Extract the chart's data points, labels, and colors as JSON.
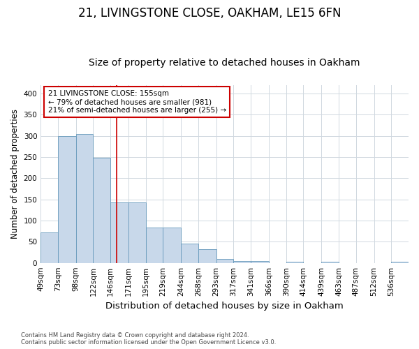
{
  "title1": "21, LIVINGSTONE CLOSE, OAKHAM, LE15 6FN",
  "title2": "Size of property relative to detached houses in Oakham",
  "xlabel": "Distribution of detached houses by size in Oakham",
  "ylabel": "Number of detached properties",
  "footnote": "Contains HM Land Registry data © Crown copyright and database right 2024.\nContains public sector information licensed under the Open Government Licence v3.0.",
  "bin_labels": [
    "49sqm",
    "73sqm",
    "98sqm",
    "122sqm",
    "146sqm",
    "171sqm",
    "195sqm",
    "219sqm",
    "244sqm",
    "268sqm",
    "293sqm",
    "317sqm",
    "341sqm",
    "366sqm",
    "390sqm",
    "414sqm",
    "439sqm",
    "463sqm",
    "487sqm",
    "512sqm",
    "536sqm"
  ],
  "bin_edges": [
    49,
    73,
    98,
    122,
    146,
    171,
    195,
    219,
    244,
    268,
    293,
    317,
    341,
    366,
    390,
    414,
    439,
    463,
    487,
    512,
    536,
    560
  ],
  "bar_values": [
    72,
    299,
    304,
    248,
    143,
    143,
    83,
    83,
    45,
    32,
    9,
    5,
    5,
    0,
    3,
    0,
    3,
    0,
    0,
    0,
    3
  ],
  "bar_color": "#c8d8ea",
  "bar_edgecolor": "#6699bb",
  "grid_color": "#d0d8e0",
  "red_line_x": 155,
  "annotation_text": "21 LIVINGSTONE CLOSE: 155sqm\n← 79% of detached houses are smaller (981)\n21% of semi-detached houses are larger (255) →",
  "annotation_box_color": "#cc0000",
  "ylim": [
    0,
    420
  ],
  "yticks": [
    0,
    50,
    100,
    150,
    200,
    250,
    300,
    350,
    400
  ],
  "background_color": "#ffffff",
  "title1_fontsize": 12,
  "title2_fontsize": 10,
  "xlabel_fontsize": 9.5,
  "ylabel_fontsize": 8.5,
  "tick_fontsize": 7.5,
  "annot_fontsize": 7.5
}
